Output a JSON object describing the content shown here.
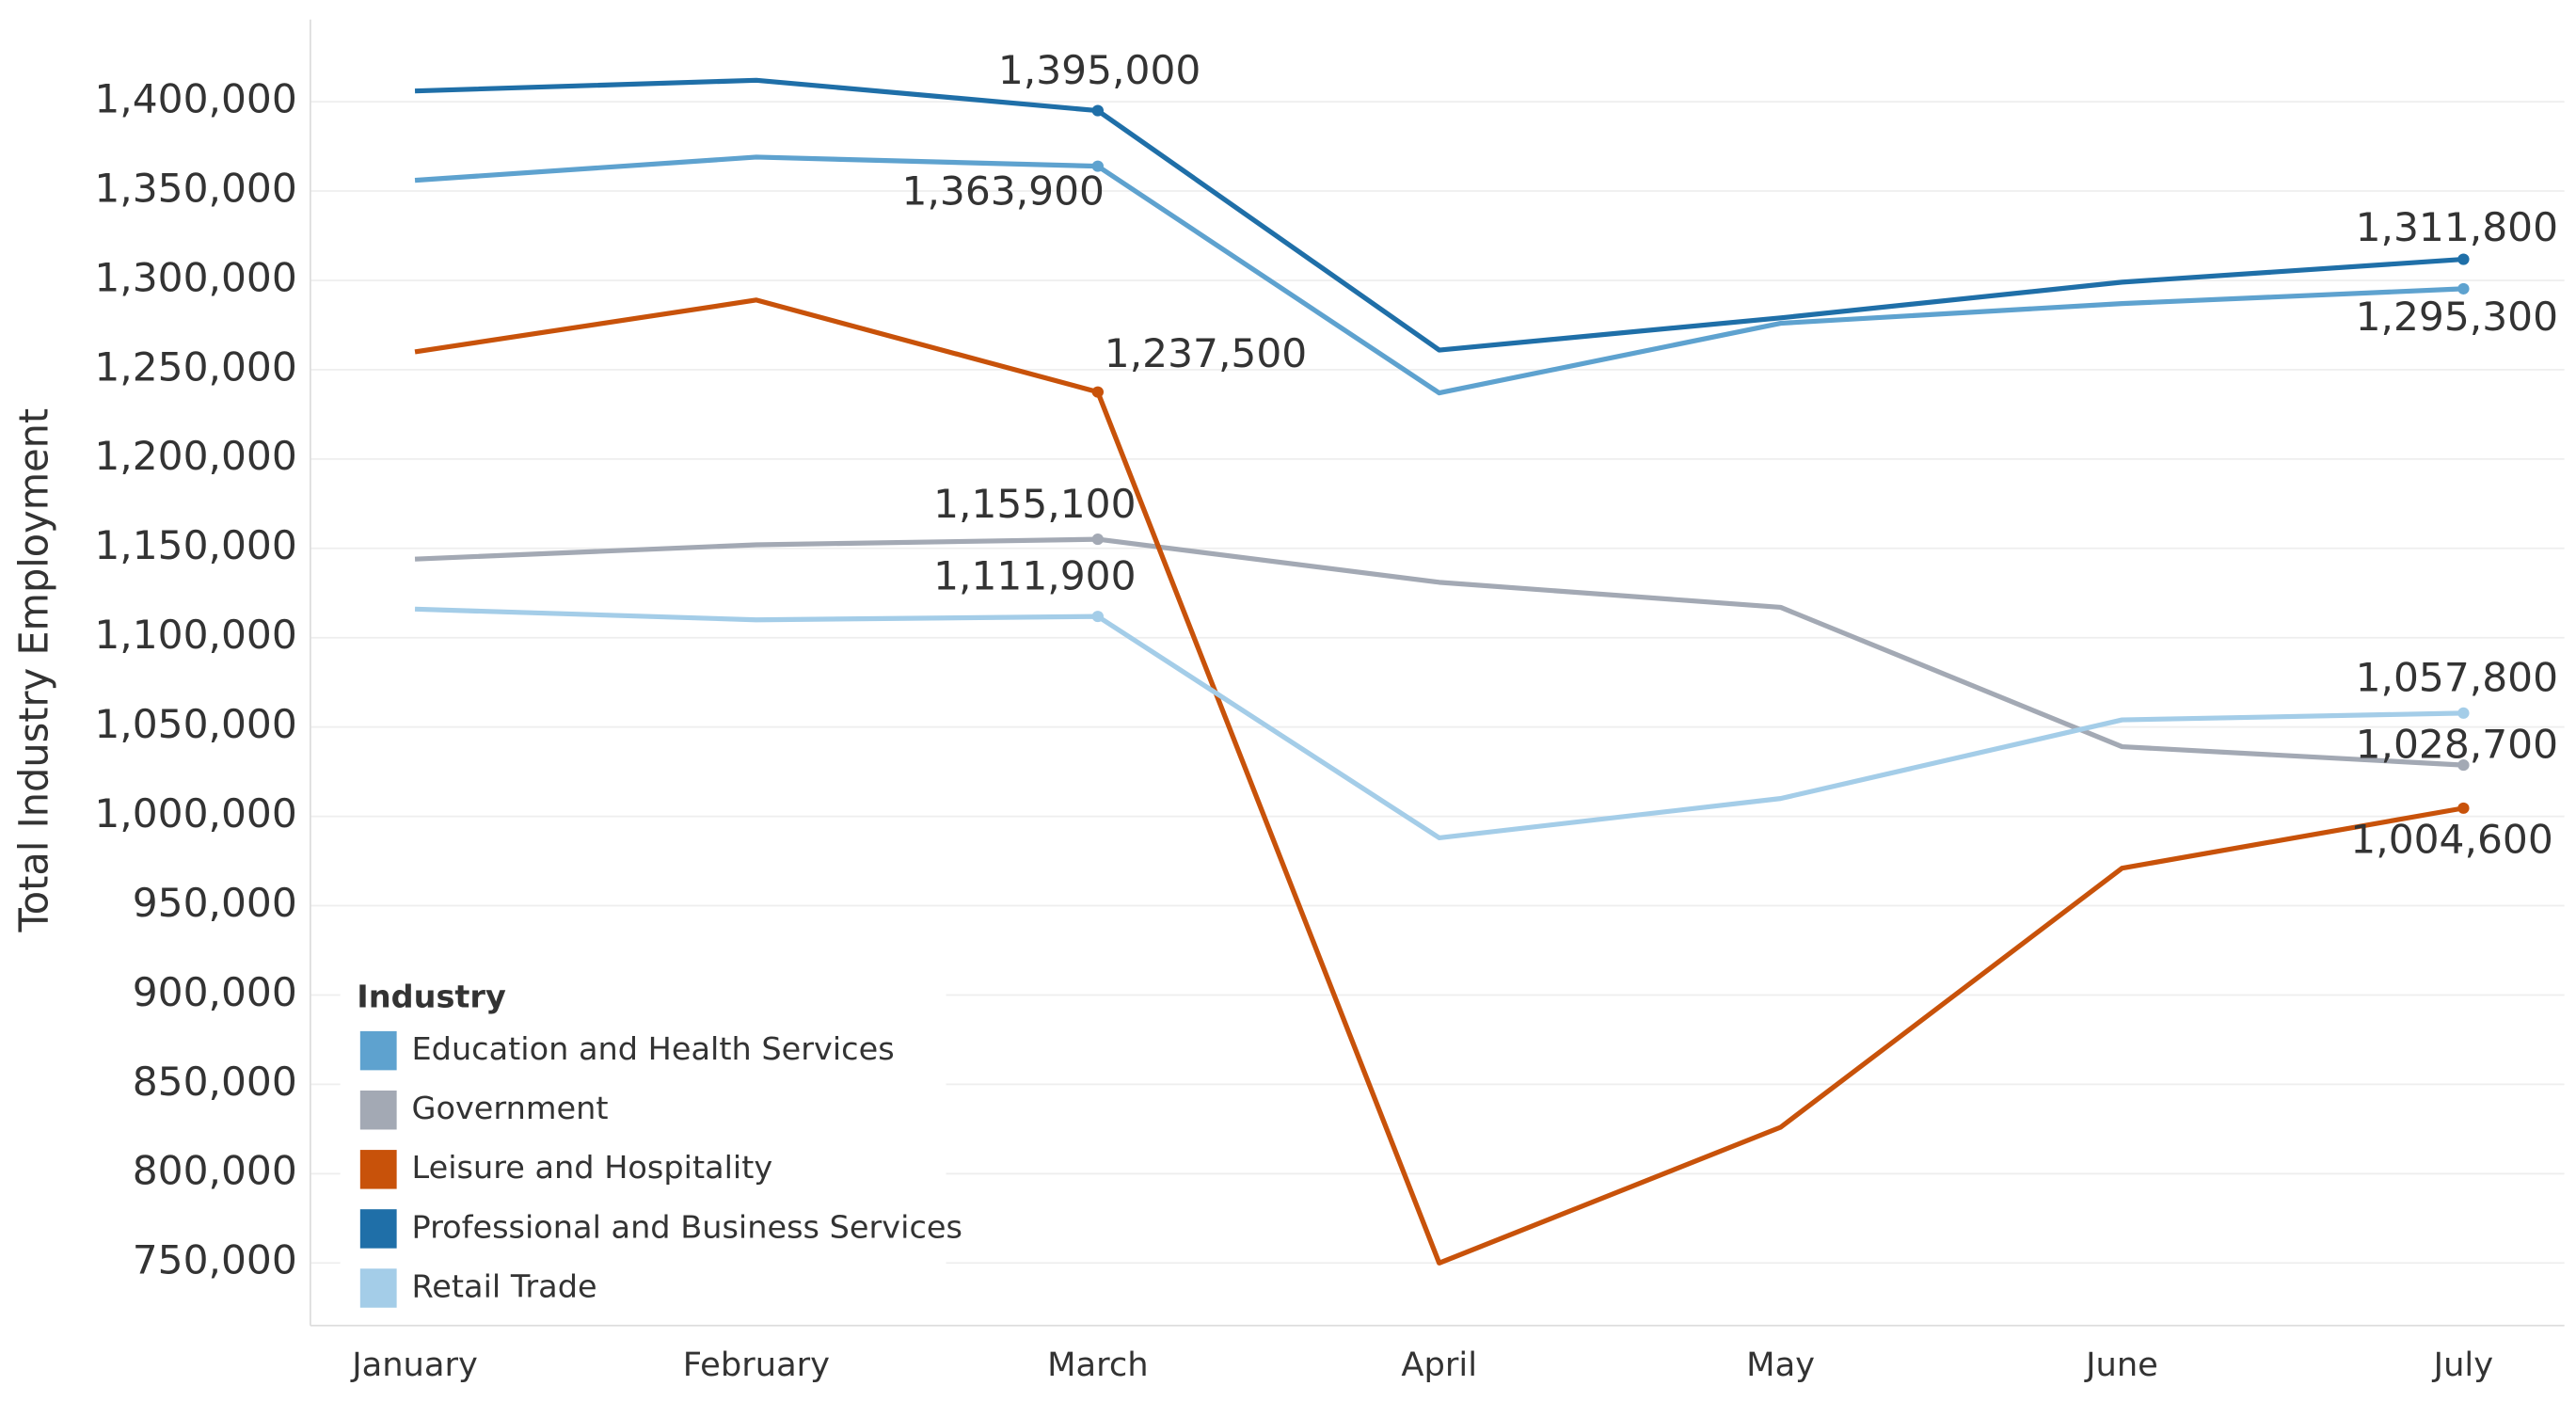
{
  "chart_data": {
    "type": "line",
    "y_label": "Total Industry Employment",
    "legend_title": "Industry",
    "legend": "bottom-left",
    "grid": true,
    "categories": [
      "January",
      "February",
      "March",
      "April",
      "May",
      "June",
      "July"
    ],
    "ylim": [
      715000,
      1446000
    ],
    "yticks": [
      {
        "value": 750000,
        "label": "750,000"
      },
      {
        "value": 800000,
        "label": "800,000"
      },
      {
        "value": 850000,
        "label": "850,000"
      },
      {
        "value": 900000,
        "label": "900,000"
      },
      {
        "value": 950000,
        "label": "950,000"
      },
      {
        "value": 1000000,
        "label": "1,000,000"
      },
      {
        "value": 1050000,
        "label": "1,050,000"
      },
      {
        "value": 1100000,
        "label": "1,100,000"
      },
      {
        "value": 1150000,
        "label": "1,150,000"
      },
      {
        "value": 1200000,
        "label": "1,200,000"
      },
      {
        "value": 1250000,
        "label": "1,250,000"
      },
      {
        "value": 1300000,
        "label": "1,300,000"
      },
      {
        "value": 1350000,
        "label": "1,350,000"
      },
      {
        "value": 1400000,
        "label": "1,400,000"
      }
    ],
    "series": [
      {
        "name": "Education and Health Services",
        "color": "#5ea2cf",
        "values": [
          1356000,
          1369000,
          1363900,
          1237000,
          1276000,
          1287000,
          1295300
        ],
        "value_labels": [
          null,
          null,
          "1,363,900",
          null,
          null,
          null,
          "1,295,300"
        ]
      },
      {
        "name": "Government",
        "color": "#a3a9b4",
        "values": [
          1144000,
          1152000,
          1155100,
          1131000,
          1117000,
          1039000,
          1028700
        ],
        "value_labels": [
          null,
          null,
          "1,155,100",
          null,
          null,
          null,
          "1,028,700"
        ]
      },
      {
        "name": "Leisure and Hospitality",
        "color": "#c8520a",
        "values": [
          1260000,
          1289000,
          1237500,
          750000,
          826000,
          971000,
          1004600
        ],
        "value_labels": [
          null,
          null,
          "1,237,500",
          null,
          null,
          null,
          "1,004,600"
        ]
      },
      {
        "name": "Professional and Business Services",
        "color": "#1f6fa8",
        "values": [
          1406000,
          1412000,
          1395000,
          1261000,
          1279000,
          1299000,
          1311800
        ],
        "value_labels": [
          null,
          null,
          "1,395,000",
          null,
          null,
          null,
          "1,311,800"
        ]
      },
      {
        "name": "Retail Trade",
        "color": "#a4cde8",
        "values": [
          1116000,
          1110000,
          1111900,
          988000,
          1010000,
          1054000,
          1057800
        ],
        "value_labels": [
          null,
          null,
          "1,111,900",
          null,
          null,
          null,
          "1,057,800"
        ]
      }
    ]
  }
}
